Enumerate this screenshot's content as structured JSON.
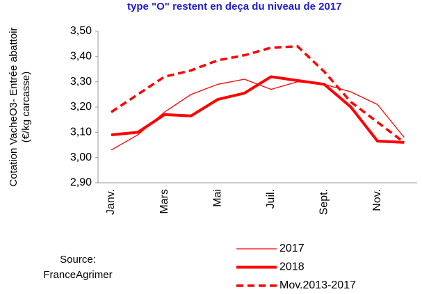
{
  "chart_data": {
    "type": "line",
    "title": "type \"O\" restent en deça du niveau de 2017",
    "y_label": [
      "Cotation VacheO3- Entrée abattoir",
      "(€/kg carcasse)"
    ],
    "source": [
      "Source:",
      "FranceAgrimer"
    ],
    "categories": [
      "Janv.",
      null,
      "Mars",
      null,
      "Mai",
      null,
      "Juil.",
      null,
      "Sept.",
      null,
      "Nov.",
      null
    ],
    "series": [
      {
        "name": "2017",
        "color": "#ff0000",
        "values": [
          3.03,
          3.09,
          3.18,
          3.25,
          3.29,
          3.31,
          3.27,
          3.3,
          3.29,
          3.26,
          3.21,
          3.08
        ]
      },
      {
        "name": "2018",
        "color": "#ff0000",
        "values": [
          3.09,
          3.1,
          3.17,
          3.165,
          3.23,
          3.255,
          3.32,
          3.305,
          3.29,
          3.2,
          3.065,
          3.06
        ]
      },
      {
        "name": "Mov.2013-2017",
        "color": "#ff0000",
        "values": [
          3.18,
          3.25,
          3.32,
          3.345,
          3.385,
          3.405,
          3.435,
          3.44,
          3.34,
          3.22,
          3.14,
          3.06
        ]
      }
    ],
    "ylim": [
      2.9,
      3.5
    ],
    "yticks": [
      {
        "value": 2.9,
        "label": "2,90"
      },
      {
        "value": 3.0,
        "label": "3,00"
      },
      {
        "value": 3.1,
        "label": "3,10"
      },
      {
        "value": 3.2,
        "label": "3,20"
      },
      {
        "value": 3.3,
        "label": "3,30"
      },
      {
        "value": 3.4,
        "label": "3,40"
      },
      {
        "value": 3.5,
        "label": "3,50"
      }
    ],
    "grid": false
  }
}
